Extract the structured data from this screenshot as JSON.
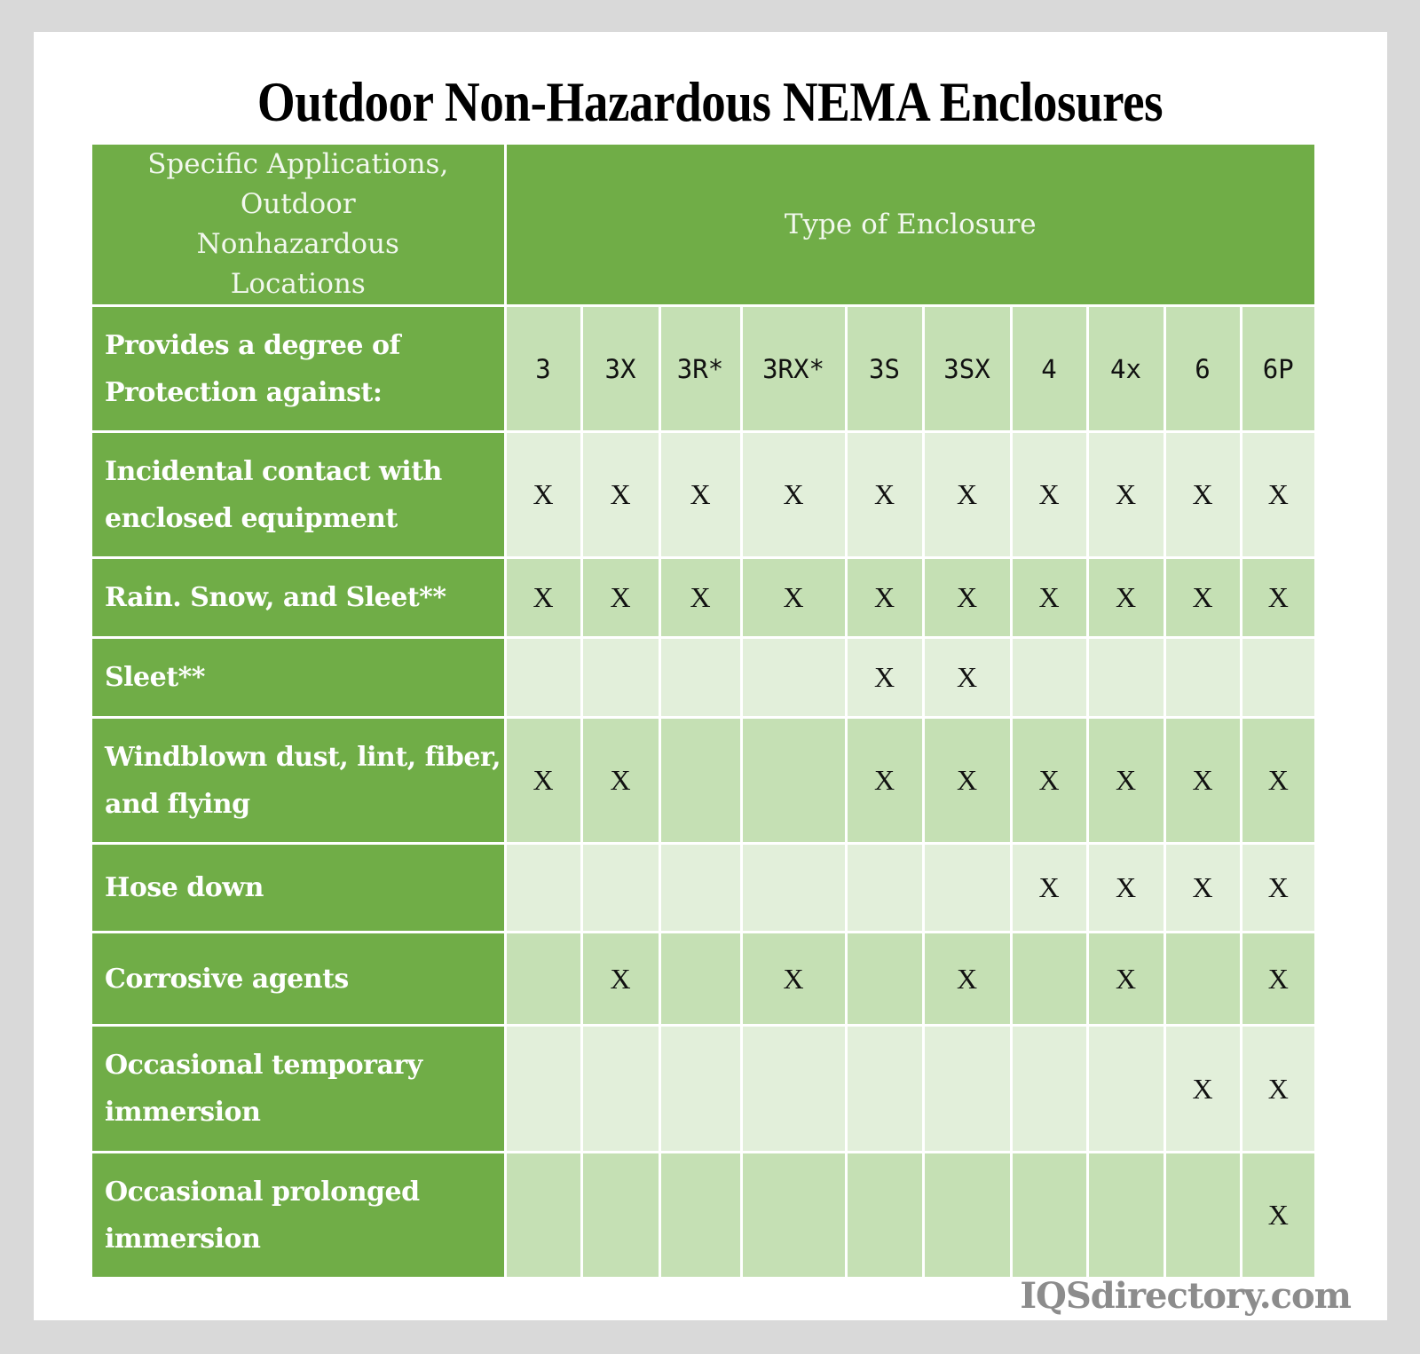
{
  "title": "Outdoor Non-Hazardous NEMA Enclosures",
  "header": {
    "left": "Specific Applications, Outdoor Nonhazardous Locations",
    "right": "Type of Enclosure"
  },
  "protection_label": "Provides a degree of Protection against:",
  "columns": [
    "3",
    "3X",
    "3R*",
    "3RX*",
    "3S",
    "3SX",
    "4",
    "4x",
    "6",
    "6P"
  ],
  "mark_symbol": "X",
  "rows": [
    {
      "label": "Incidental contact with enclosed equipment",
      "marks": [
        1,
        1,
        1,
        1,
        1,
        1,
        1,
        1,
        1,
        1
      ]
    },
    {
      "label": "Rain. Snow, and Sleet**",
      "marks": [
        1,
        1,
        1,
        1,
        1,
        1,
        1,
        1,
        1,
        1
      ]
    },
    {
      "label": "Sleet**",
      "marks": [
        0,
        0,
        0,
        0,
        1,
        1,
        0,
        0,
        0,
        0
      ]
    },
    {
      "label": "Windblown dust, lint, fiber, and flying",
      "marks": [
        1,
        1,
        0,
        0,
        1,
        1,
        1,
        1,
        1,
        1
      ]
    },
    {
      "label": "Hose down",
      "marks": [
        0,
        0,
        0,
        0,
        0,
        0,
        1,
        1,
        1,
        1
      ]
    },
    {
      "label": "Corrosive agents",
      "marks": [
        0,
        1,
        0,
        1,
        0,
        1,
        0,
        1,
        0,
        1
      ]
    },
    {
      "label": "Occasional temporary immersion",
      "marks": [
        0,
        0,
        0,
        0,
        0,
        0,
        0,
        0,
        1,
        1
      ]
    },
    {
      "label": "Occasional prolonged immersion",
      "marks": [
        0,
        0,
        0,
        0,
        0,
        0,
        0,
        0,
        0,
        1
      ]
    }
  ],
  "watermark": "IQSdirectory.com",
  "colors": {
    "label_green": "#70ad47",
    "mid_green": "#c5e0b4",
    "light_green": "#e2efda",
    "background": "#d9d9d9"
  }
}
